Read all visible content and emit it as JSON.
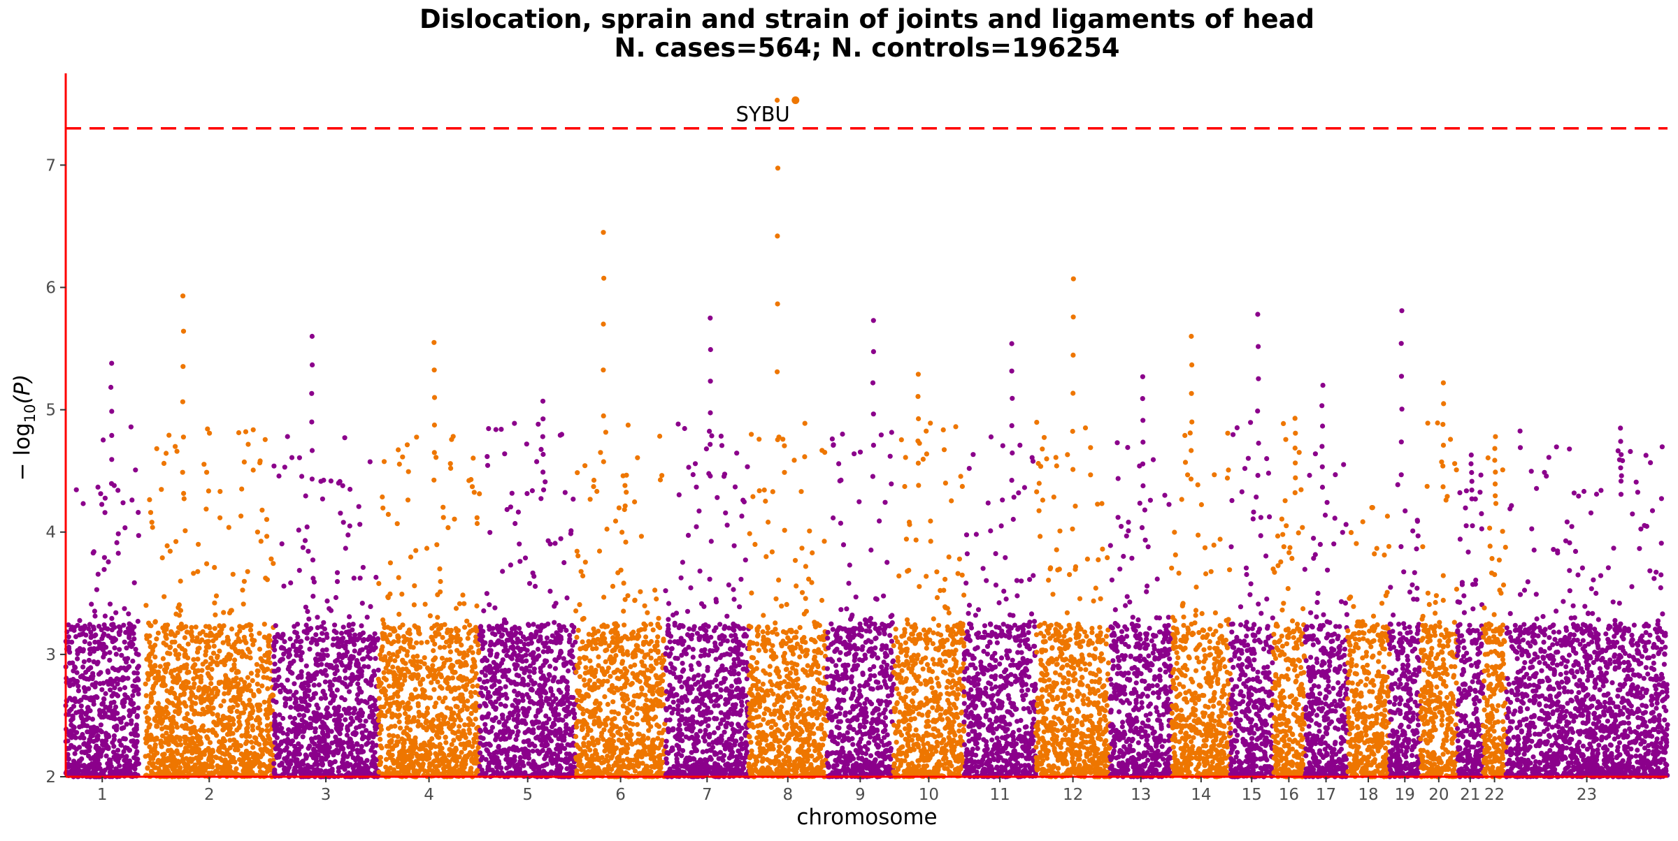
{
  "chart_data": {
    "type": "scatter",
    "title": "Dislocation, sprain and strain of joints and ligaments of head",
    "subtitle": "N. cases=564; N. controls=196254",
    "xlabel": "chromosome",
    "ylabel_main": "− log",
    "ylabel_sub": "10",
    "ylabel_arg": "(P)",
    "ylim": [
      2,
      7.75
    ],
    "yticks": [
      "2",
      "3",
      "4",
      "5",
      "6",
      "7"
    ],
    "grid": false,
    "legend": "none",
    "significance_line": 7.3,
    "colors": {
      "odd": "#8B008B",
      "even": "#EE7600",
      "threshold": "#FF0000",
      "axis": "#FF0000"
    },
    "chromosomes": [
      {
        "label": "1",
        "span": [
          0,
          5.7
        ],
        "max_p": 5.38
      },
      {
        "label": "2",
        "span": [
          6.2,
          16.2
        ],
        "max_p": 5.93
      },
      {
        "label": "3",
        "span": [
          16.2,
          24.4
        ],
        "max_p": 5.6
      },
      {
        "label": "4",
        "span": [
          24.4,
          32.3
        ],
        "max_p": 5.55
      },
      {
        "label": "5",
        "span": [
          32.3,
          39.8
        ],
        "max_p": 5.07
      },
      {
        "label": "6",
        "span": [
          39.8,
          46.8
        ],
        "max_p": 6.45
      },
      {
        "label": "7",
        "span": [
          46.8,
          53.3
        ],
        "max_p": 5.75
      },
      {
        "label": "8",
        "span": [
          53.3,
          59.4
        ],
        "max_p": 7.53
      },
      {
        "label": "9",
        "span": [
          59.4,
          64.6
        ],
        "max_p": 5.73
      },
      {
        "label": "10",
        "span": [
          64.6,
          70.1
        ],
        "max_p": 5.29
      },
      {
        "label": "11",
        "span": [
          70.1,
          75.7
        ],
        "max_p": 5.54
      },
      {
        "label": "12",
        "span": [
          75.7,
          81.5
        ],
        "max_p": 6.07
      },
      {
        "label": "13",
        "span": [
          81.5,
          86.3
        ],
        "max_p": 5.27
      },
      {
        "label": "14",
        "span": [
          86.3,
          90.9
        ],
        "max_p": 5.6
      },
      {
        "label": "15",
        "span": [
          90.9,
          94.2
        ],
        "max_p": 5.78
      },
      {
        "label": "16",
        "span": [
          94.2,
          96.7
        ],
        "max_p": 4.93
      },
      {
        "label": "17",
        "span": [
          96.7,
          100.0
        ],
        "max_p": 5.2
      },
      {
        "label": "18",
        "span": [
          100.0,
          103.3
        ],
        "max_p": 4.2
      },
      {
        "label": "19",
        "span": [
          103.3,
          105.7
        ],
        "max_p": 5.81
      },
      {
        "label": "20",
        "span": [
          105.7,
          108.6
        ],
        "max_p": 5.22
      },
      {
        "label": "21",
        "span": [
          108.6,
          110.6
        ],
        "max_p": 4.63
      },
      {
        "label": "22",
        "span": [
          110.6,
          112.4
        ],
        "max_p": 4.78
      },
      {
        "label": "23",
        "span": [
          112.4,
          125.0
        ],
        "max_p": 4.85
      }
    ],
    "hits": [
      {
        "chr": "8",
        "x": 56.95,
        "y": 7.53,
        "label": "SYBU"
      }
    ]
  }
}
